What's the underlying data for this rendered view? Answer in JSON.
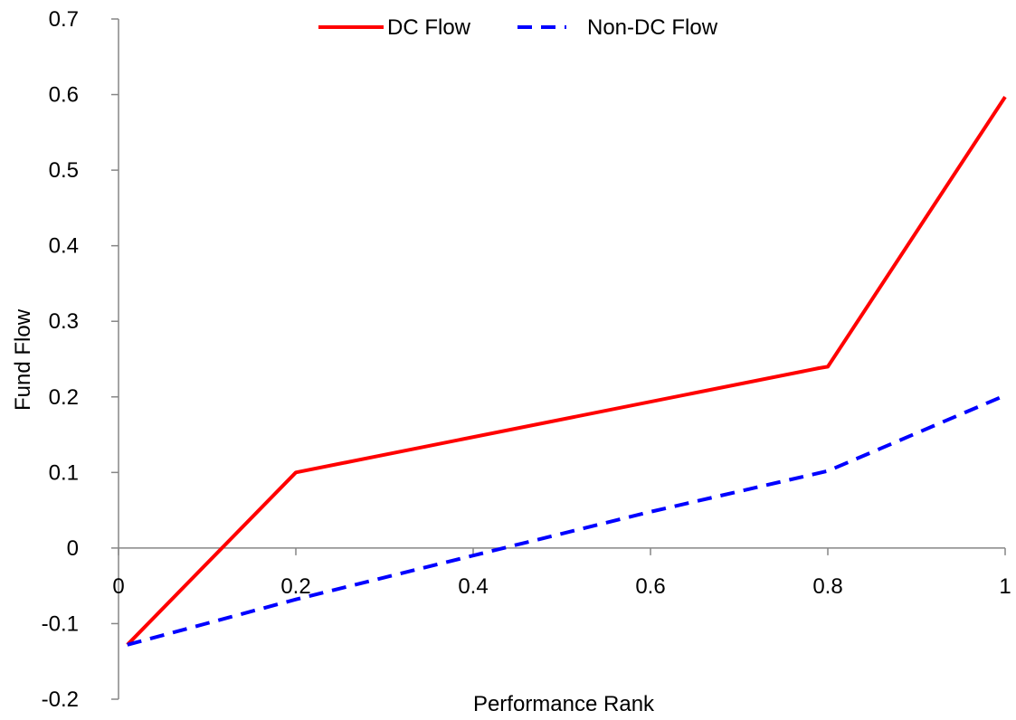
{
  "chart_data": {
    "type": "line",
    "title": "",
    "xlabel": "Performance Rank",
    "ylabel": "Fund Flow",
    "xlim": [
      0,
      1
    ],
    "ylim": [
      -0.2,
      0.7
    ],
    "x_ticks": [
      0,
      0.2,
      0.4,
      0.6,
      0.8,
      1
    ],
    "x_tick_labels": [
      "0",
      "0.2",
      "0.4",
      "0.6",
      "0.8",
      "1"
    ],
    "y_ticks": [
      -0.2,
      -0.1,
      0,
      0.1,
      0.2,
      0.3,
      0.4,
      0.5,
      0.6,
      0.7
    ],
    "y_tick_labels": [
      "-0.2",
      "-0.1",
      "0",
      "0.1",
      "0.2",
      "0.3",
      "0.4",
      "0.5",
      "0.6",
      "0.7"
    ],
    "grid": false,
    "legend_position": "top-center",
    "series": [
      {
        "name": "DC Flow",
        "color": "#ff0000",
        "style": "solid",
        "x": [
          0.01,
          0.2,
          0.79,
          0.8,
          1.0
        ],
        "y": [
          -0.128,
          0.1,
          0.238,
          0.24,
          0.597
        ]
      },
      {
        "name": "Non-DC Flow",
        "color": "#0000ff",
        "style": "dashed",
        "x": [
          0.01,
          0.2,
          0.4,
          0.6,
          0.8,
          1.0
        ],
        "y": [
          -0.128,
          -0.068,
          -0.01,
          0.048,
          0.102,
          0.202
        ]
      }
    ]
  }
}
